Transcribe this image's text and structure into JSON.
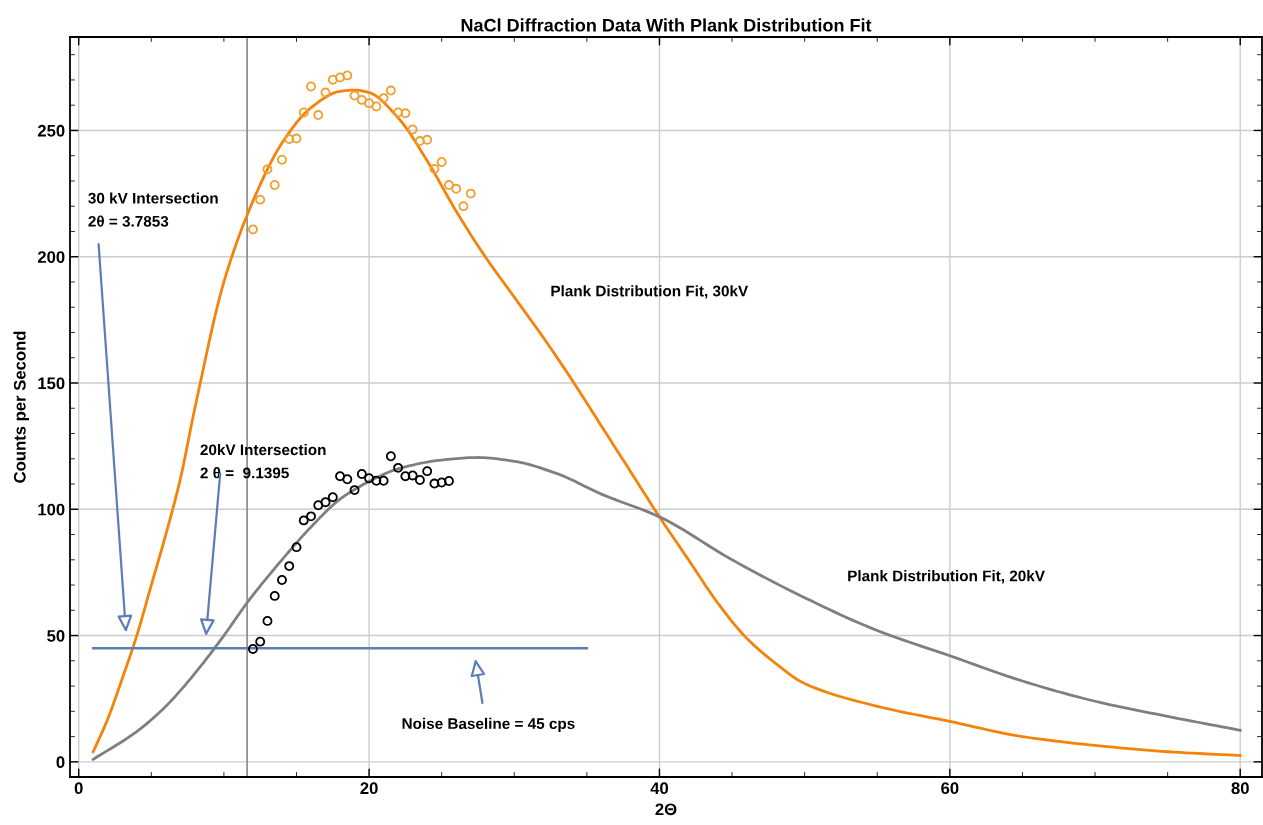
{
  "chart_data": {
    "type": "scatter",
    "title": "NaCl Diffraction Data With Plank Distribution Fit",
    "xlabel": "2Θ",
    "ylabel": "Counts per Second",
    "xlim": [
      -0.6,
      81.5
    ],
    "ylim": [
      -6,
      287
    ],
    "xticks": [
      0,
      20,
      40,
      60,
      80
    ],
    "yticks": [
      0,
      50,
      100,
      150,
      200,
      250
    ],
    "grid": true,
    "series": [
      {
        "type": "line",
        "color": "#f5820a",
        "marker": "none",
        "x": [
          1,
          2,
          3,
          4,
          5,
          6,
          7,
          8,
          10,
          12,
          14,
          16,
          18,
          19,
          20,
          22,
          24,
          26,
          28,
          30,
          32,
          34,
          36,
          38,
          40,
          42,
          44,
          46,
          48,
          50,
          55,
          60,
          65,
          70,
          75,
          80
        ],
        "values": [
          4,
          17,
          33,
          50,
          70,
          90,
          112,
          140,
          190,
          222,
          245,
          259,
          265.5,
          266,
          265,
          255,
          238,
          218,
          200,
          184,
          168,
          151,
          133,
          115,
          97,
          80,
          63,
          49,
          39,
          31,
          22,
          16,
          10,
          6.5,
          4,
          2.5
        ]
      },
      {
        "type": "line",
        "color": "#7f7f7f",
        "marker": "none",
        "x": [
          1,
          4,
          6,
          8,
          10,
          11.6,
          14,
          16,
          18,
          20,
          22,
          25,
          27.5,
          30,
          33,
          36,
          40,
          45,
          50,
          55,
          60,
          65,
          70,
          75,
          80
        ],
        "values": [
          1,
          12,
          22,
          35,
          50,
          63,
          80,
          93,
          104,
          111,
          116,
          119.5,
          120.5,
          119,
          114,
          106,
          97,
          80,
          65,
          52,
          42,
          32,
          24,
          18,
          12.5
        ]
      },
      {
        "type": "line",
        "color": "#5b7fb5",
        "marker": "none",
        "x": [
          1,
          35
        ],
        "values": [
          45,
          45
        ]
      },
      {
        "color": "#f0a030",
        "marker": "circle",
        "x": [
          12,
          12.5,
          13,
          13.5,
          14,
          14.5,
          15,
          15.5,
          16,
          16.5,
          17,
          17.5,
          18,
          18.5,
          19,
          19.5,
          20,
          20.5,
          21,
          21.5,
          22,
          22.5,
          23,
          23.5,
          24,
          24.5,
          25,
          25.5,
          26,
          26.5,
          27
        ],
        "values": [
          210.8,
          222.6,
          234.6,
          228.4,
          238.4,
          246.6,
          246.8,
          257.1,
          267.4,
          256.1,
          265,
          270.1,
          271,
          271.8,
          263.8,
          262.1,
          260.8,
          259.5,
          262.8,
          265.8,
          257.1,
          256.8,
          250.4,
          245.8,
          246.3,
          234.8,
          237.5,
          228.4,
          226.9,
          220,
          225
        ]
      },
      {
        "color": "#000000",
        "marker": "circle",
        "x": [
          12,
          12.5,
          13,
          13.5,
          14,
          14.5,
          15,
          15.5,
          16,
          16.5,
          17,
          17.5,
          18,
          18.5,
          19,
          19.5,
          20,
          20.5,
          21,
          21.5,
          22,
          22.5,
          23,
          23.5,
          24,
          24.5,
          25,
          25.5
        ],
        "values": [
          44.7,
          47.6,
          55.8,
          65.7,
          72,
          77.5,
          85,
          95.6,
          97.2,
          101.6,
          102.8,
          104.8,
          113.1,
          111.9,
          107.6,
          114,
          112.3,
          111.3,
          111.3,
          121,
          116.4,
          113.1,
          113.4,
          111.6,
          115.1,
          110.2,
          110.6,
          111.2
        ]
      }
    ],
    "ref_lines": [
      {
        "axis": "x",
        "value": 11.6,
        "color": "#8c8c8c"
      }
    ],
    "annotations": [
      "30 kV Intersection\n2θ = 3.7853",
      "20kV Intersection\n2 θ =  9.1395",
      "Noise Baseline = 45 cps",
      "Plank Distribution Fit, 30kV",
      "Plank Distribution Fit, 20kV"
    ]
  }
}
